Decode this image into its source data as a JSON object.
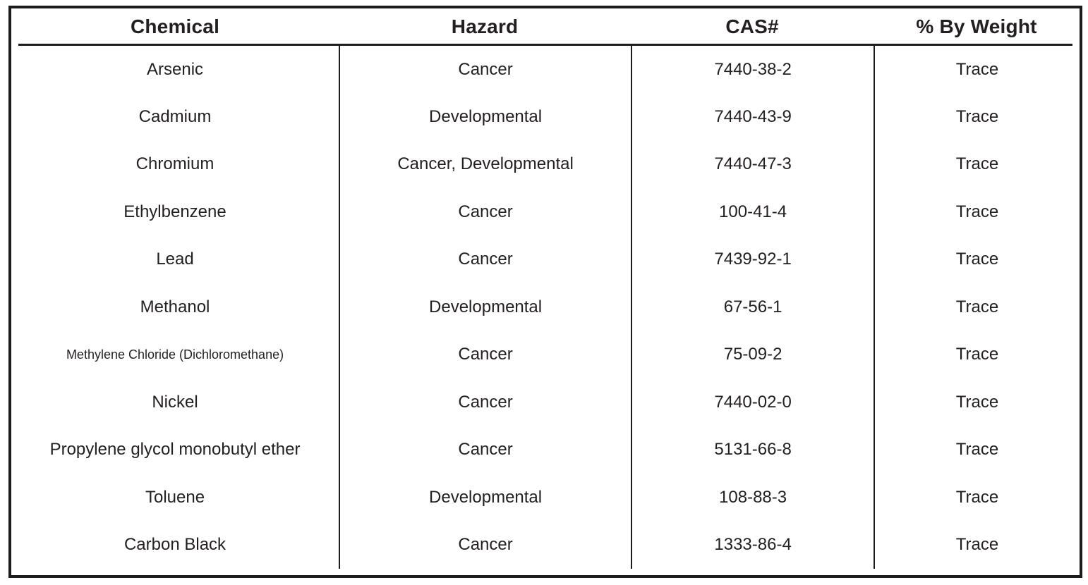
{
  "table": {
    "columns": [
      {
        "key": "chemical",
        "label": "Chemical"
      },
      {
        "key": "hazard",
        "label": "Hazard"
      },
      {
        "key": "cas",
        "label": "CAS#"
      },
      {
        "key": "weight",
        "label": "% By Weight"
      }
    ],
    "rows": [
      {
        "chemical": "Arsenic",
        "hazard": "Cancer",
        "cas": "7440-38-2",
        "weight": "Trace"
      },
      {
        "chemical": "Cadmium",
        "hazard": "Developmental",
        "cas": "7440-43-9",
        "weight": "Trace"
      },
      {
        "chemical": "Chromium",
        "hazard": "Cancer, Developmental",
        "cas": "7440-47-3",
        "weight": "Trace"
      },
      {
        "chemical": "Ethylbenzene",
        "hazard": "Cancer",
        "cas": "100-41-4",
        "weight": "Trace"
      },
      {
        "chemical": "Lead",
        "hazard": "Cancer",
        "cas": "7439-92-1",
        "weight": "Trace"
      },
      {
        "chemical": "Methanol",
        "hazard": "Developmental",
        "cas": "67-56-1",
        "weight": "Trace"
      },
      {
        "chemical": "Methylene Chloride (Dichloromethane)",
        "hazard": "Cancer",
        "cas": "75-09-2",
        "weight": "Trace"
      },
      {
        "chemical": "Nickel",
        "hazard": "Cancer",
        "cas": "7440-02-0",
        "weight": "Trace"
      },
      {
        "chemical": "Propylene glycol monobutyl ether",
        "hazard": "Cancer",
        "cas": "5131-66-8",
        "weight": "Trace"
      },
      {
        "chemical": "Toluene",
        "hazard": "Developmental",
        "cas": "108-88-3",
        "weight": "Trace"
      },
      {
        "chemical": "Carbon Black",
        "hazard": "Cancer",
        "cas": "1333-86-4",
        "weight": "Trace"
      }
    ]
  },
  "colors": {
    "border": "#1c1c1c",
    "text": "#231f20",
    "background": "#ffffff"
  }
}
